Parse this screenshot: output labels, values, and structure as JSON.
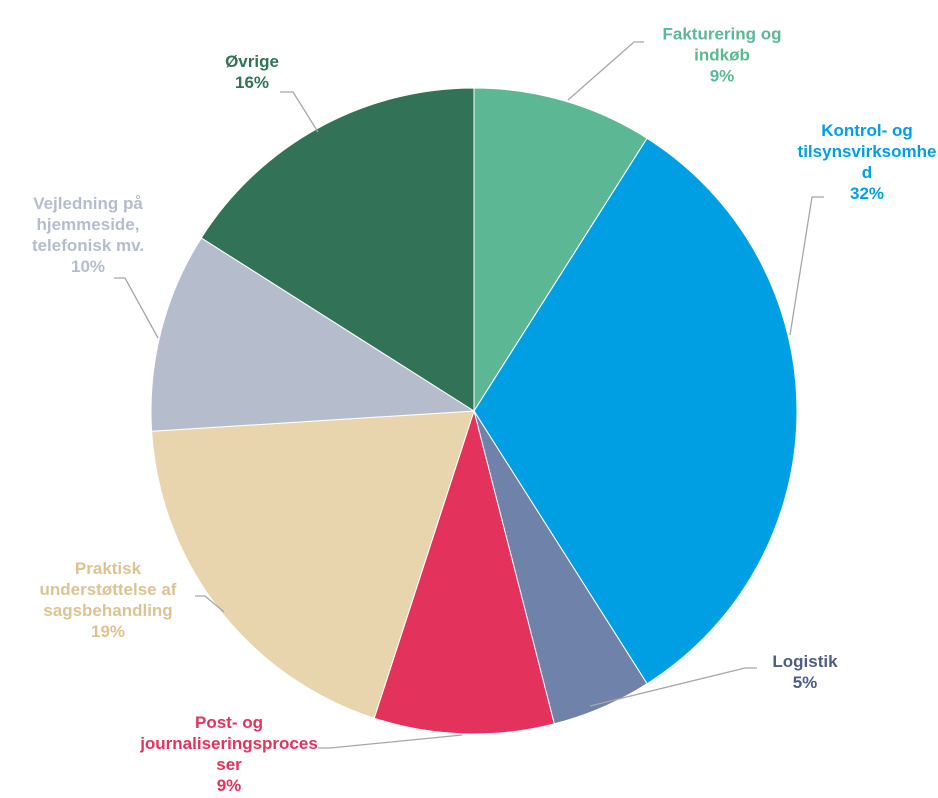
{
  "chart_data": {
    "type": "pie",
    "categories": [
      "Fakturering og indkøb",
      "Kontrol- og tilsynsvirksomhed",
      "Logistik",
      "Post- og journaliseringsprocesser",
      "Praktisk understøttelse af sagsbehandling",
      "Vejledning på hjemmeside, telefonisk mv.",
      "Øvrige"
    ],
    "values": [
      9,
      32,
      5,
      9,
      19,
      10,
      16
    ],
    "value_labels": [
      "9%",
      "32%",
      "5%",
      "9%",
      "19%",
      "10%",
      "16%"
    ],
    "colors": [
      "#5cb894",
      "#009fe3",
      "#6e82aa",
      "#e3325c",
      "#e8d5ae",
      "#b5bccb",
      "#327257"
    ]
  }
}
